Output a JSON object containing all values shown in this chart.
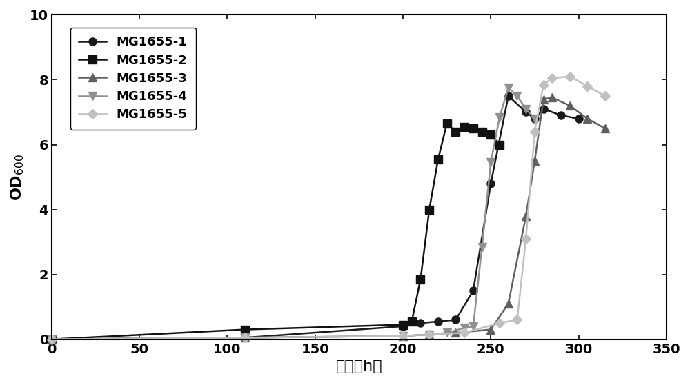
{
  "series": [
    {
      "label": "MG1655-1",
      "color": "#1a1a1a",
      "marker": "o",
      "markersize": 8,
      "linewidth": 1.8,
      "x": [
        0,
        110,
        200,
        210,
        220,
        230,
        240,
        250,
        260,
        270,
        275,
        280,
        290,
        300
      ],
      "y": [
        0,
        0.05,
        0.4,
        0.5,
        0.55,
        0.6,
        1.5,
        4.8,
        7.5,
        7.0,
        6.8,
        7.1,
        6.9,
        6.8
      ]
    },
    {
      "label": "MG1655-2",
      "color": "#111111",
      "marker": "s",
      "markersize": 8,
      "linewidth": 1.8,
      "x": [
        0,
        110,
        200,
        205,
        210,
        215,
        220,
        225,
        230,
        235,
        240,
        245,
        250,
        255
      ],
      "y": [
        0,
        0.3,
        0.45,
        0.55,
        1.85,
        4.0,
        5.55,
        6.65,
        6.4,
        6.55,
        6.5,
        6.4,
        6.3,
        6.0
      ]
    },
    {
      "label": "MG1655-3",
      "color": "#606060",
      "marker": "^",
      "markersize": 8,
      "linewidth": 1.8,
      "x": [
        0,
        110,
        200,
        215,
        230,
        250,
        260,
        270,
        275,
        280,
        285,
        295,
        305,
        315
      ],
      "y": [
        0,
        0.05,
        0.1,
        0.15,
        0.2,
        0.3,
        1.1,
        3.8,
        5.5,
        7.4,
        7.45,
        7.2,
        6.8,
        6.5
      ]
    },
    {
      "label": "MG1655-4",
      "color": "#909090",
      "marker": "v",
      "markersize": 8,
      "linewidth": 1.8,
      "x": [
        0,
        110,
        200,
        215,
        225,
        235,
        240,
        245,
        250,
        255,
        260,
        265,
        270,
        275
      ],
      "y": [
        0,
        0.05,
        0.1,
        0.15,
        0.2,
        0.35,
        0.4,
        2.85,
        5.45,
        6.85,
        7.75,
        7.5,
        7.1,
        6.8
      ]
    },
    {
      "label": "MG1655-5",
      "color": "#c0c0c0",
      "marker": "D",
      "markersize": 7,
      "linewidth": 1.8,
      "x": [
        0,
        110,
        200,
        215,
        235,
        255,
        265,
        270,
        275,
        280,
        285,
        295,
        305,
        315
      ],
      "y": [
        0,
        0.05,
        0.1,
        0.15,
        0.2,
        0.5,
        0.6,
        3.1,
        6.4,
        7.85,
        8.05,
        8.1,
        7.8,
        7.5
      ]
    }
  ],
  "xlabel": "时间（h）",
  "ylabel_text": "OD",
  "ylabel_sub": "600",
  "xlim": [
    0,
    350
  ],
  "ylim": [
    0,
    10
  ],
  "xticks": [
    0,
    50,
    100,
    150,
    200,
    250,
    300,
    350
  ],
  "yticks": [
    0,
    2,
    4,
    6,
    8,
    10
  ],
  "xlabel_fontsize": 16,
  "ylabel_fontsize": 16,
  "tick_fontsize": 14,
  "legend_fontsize": 13,
  "background_color": "#ffffff",
  "figure_facecolor": "#ffffff"
}
